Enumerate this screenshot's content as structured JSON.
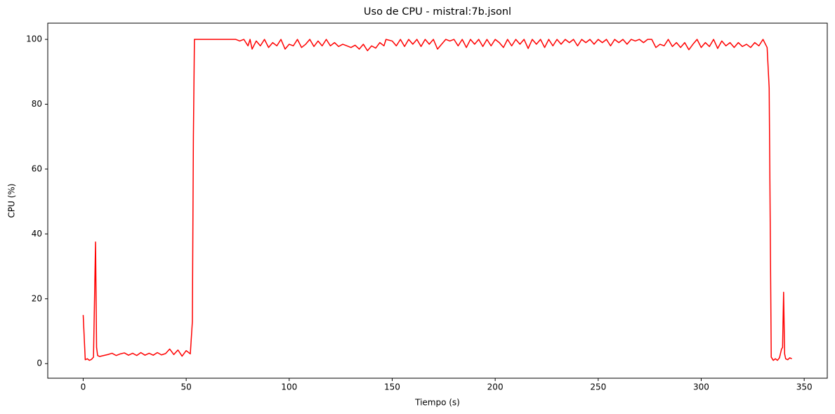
{
  "chart_data": {
    "type": "line",
    "title": "Uso de CPU - mistral:7b.jsonl",
    "x_label": "Tiempo (s)",
    "y_label": "CPU (%)",
    "y_label_color": "red",
    "x": [
      0,
      1,
      2,
      3,
      4,
      5,
      6,
      6.5,
      7,
      8,
      10,
      12,
      14,
      16,
      18,
      20,
      22,
      24,
      26,
      28,
      30,
      32,
      34,
      36,
      38,
      40,
      42,
      44,
      46,
      48,
      50,
      52,
      53,
      53.5,
      54,
      60,
      70,
      74,
      76,
      78,
      80,
      81,
      82,
      84,
      86,
      88,
      90,
      92,
      94,
      96,
      98,
      100,
      102,
      104,
      106,
      108,
      110,
      112,
      114,
      116,
      118,
      120,
      122,
      124,
      126,
      128,
      130,
      132,
      134,
      136,
      138,
      140,
      142,
      144,
      146,
      147,
      150,
      152,
      154,
      156,
      158,
      160,
      162,
      164,
      166,
      168,
      170,
      172,
      174,
      176,
      178,
      180,
      182,
      184,
      186,
      188,
      190,
      192,
      194,
      196,
      198,
      200,
      202,
      204,
      206,
      208,
      210,
      212,
      214,
      216,
      218,
      220,
      222,
      224,
      226,
      228,
      230,
      232,
      234,
      236,
      238,
      240,
      242,
      244,
      246,
      248,
      250,
      252,
      254,
      256,
      258,
      260,
      262,
      264,
      266,
      268,
      270,
      272,
      274,
      276,
      278,
      280,
      282,
      284,
      286,
      288,
      290,
      292,
      294,
      296,
      298,
      300,
      302,
      304,
      306,
      308,
      310,
      312,
      314,
      316,
      318,
      320,
      322,
      324,
      326,
      328,
      330,
      332,
      333,
      334,
      335,
      336,
      337,
      338,
      339,
      339.5,
      340,
      340.5,
      341,
      342,
      343,
      344
    ],
    "series": [
      {
        "name": "CPU",
        "color": "red",
        "values": [
          15,
          1.2,
          1.5,
          1.0,
          1.3,
          2,
          37.5,
          5,
          2.5,
          2.2,
          2.5,
          2.8,
          3.2,
          2.5,
          3,
          3.3,
          2.6,
          3.2,
          2.5,
          3.4,
          2.6,
          3.2,
          2.6,
          3.4,
          2.7,
          3.1,
          4.5,
          2.8,
          4.2,
          2.3,
          4.0,
          3.0,
          13,
          70,
          100,
          100,
          100,
          100,
          99.5,
          100,
          98,
          100,
          97,
          99.5,
          98,
          100,
          97.5,
          99,
          98,
          100,
          97,
          98.5,
          98,
          100,
          97.5,
          98.5,
          100,
          97.8,
          99.5,
          98,
          100,
          98,
          99,
          97.8,
          98.5,
          98,
          97.5,
          98.2,
          97,
          98.5,
          96.5,
          98,
          97.3,
          99,
          98,
          100,
          99.5,
          98,
          100,
          97.8,
          100,
          98.5,
          100,
          97.8,
          100,
          98.5,
          100,
          97,
          98.5,
          100,
          99.5,
          100,
          98,
          100,
          97.5,
          100,
          98.5,
          100,
          97.8,
          100,
          98,
          100,
          99,
          97.5,
          100,
          98,
          100,
          98.5,
          100,
          97.2,
          100,
          98.5,
          100,
          97.5,
          100,
          98,
          100,
          98.5,
          100,
          99,
          100,
          98,
          100,
          99,
          100,
          98.5,
          100,
          99,
          100,
          98,
          100,
          99,
          100,
          98.5,
          100,
          99.5,
          100,
          99,
          100,
          100,
          97.5,
          98.5,
          98,
          100,
          97.8,
          99,
          97.5,
          99,
          96.8,
          98.5,
          100,
          97.5,
          99,
          97.8,
          100,
          97.2,
          99.5,
          98,
          99,
          97.5,
          99,
          97.8,
          98.5,
          97.5,
          99,
          98,
          100,
          97.5,
          85,
          2,
          1,
          1.5,
          1,
          1.8,
          4.5,
          5,
          22,
          3,
          1.5,
          1.2,
          1.8,
          1.5
        ]
      }
    ],
    "xlim": [
      -17.2,
      361.2
    ],
    "ylim": [
      -4.5,
      105
    ],
    "xticks": [
      0,
      50,
      100,
      150,
      200,
      250,
      300,
      350
    ],
    "yticks": [
      0,
      20,
      40,
      60,
      80,
      100
    ]
  }
}
